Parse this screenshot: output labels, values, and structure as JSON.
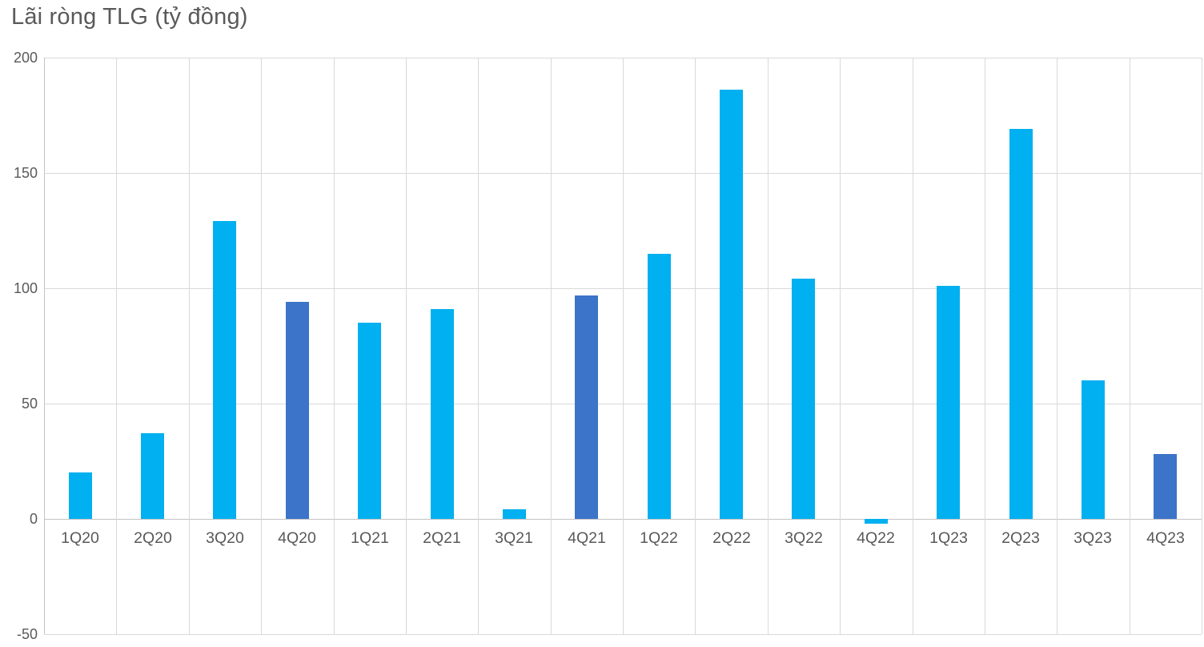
{
  "page": {
    "background_color": "#ffffff"
  },
  "chart_data": {
    "type": "bar",
    "title": "Lãi ròng TLG (tỷ đồng)",
    "xlabel": "",
    "ylabel": "",
    "categories": [
      "1Q20",
      "2Q20",
      "3Q20",
      "4Q20",
      "1Q21",
      "2Q21",
      "3Q21",
      "4Q21",
      "1Q22",
      "2Q22",
      "3Q22",
      "4Q22",
      "1Q23",
      "2Q23",
      "3Q23",
      "4Q23"
    ],
    "values": [
      20,
      37,
      129,
      94,
      85,
      91,
      4,
      97,
      115,
      186,
      104,
      -2,
      101,
      169,
      60,
      28
    ],
    "highlighted_categories": [
      "4Q20",
      "4Q21",
      "4Q23"
    ],
    "ylim": [
      -50,
      200
    ],
    "yticks": [
      200,
      150,
      100,
      50,
      0,
      -50
    ],
    "grid": true,
    "legend_position": "none",
    "colors": {
      "bar": "#00B0F0",
      "bar_highlight": "#3B74C8",
      "gridline": "#D9D9D9",
      "axis_line": "#C3C3C3",
      "text": "#595959"
    }
  }
}
